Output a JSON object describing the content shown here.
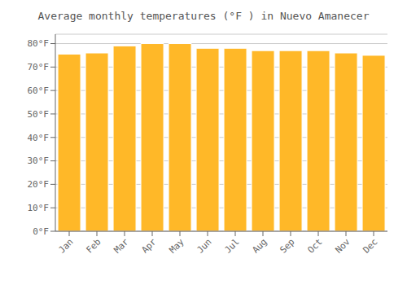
{
  "chart_data": {
    "type": "bar",
    "title": "Average monthly temperatures (°F ) in Nuevo Amanecer",
    "categories": [
      "Jan",
      "Feb",
      "Mar",
      "Apr",
      "May",
      "Jun",
      "Jul",
      "Aug",
      "Sep",
      "Oct",
      "Nov",
      "Dec"
    ],
    "values": [
      75.5,
      76.0,
      79.0,
      80.0,
      80.0,
      78.0,
      78.0,
      77.0,
      77.0,
      77.0,
      76.0,
      75.0
    ],
    "color": "#FFB828",
    "ylim": [
      0,
      84
    ],
    "yticks": [
      {
        "value": 0,
        "label": "0°F"
      },
      {
        "value": 10,
        "label": "10°F"
      },
      {
        "value": 20,
        "label": "20°F"
      },
      {
        "value": 30,
        "label": "30°F"
      },
      {
        "value": 40,
        "label": "40°F"
      },
      {
        "value": 50,
        "label": "50°F"
      },
      {
        "value": 60,
        "label": "60°F"
      },
      {
        "value": 70,
        "label": "70°F"
      },
      {
        "value": 80,
        "label": "80°F"
      }
    ],
    "grid": true
  }
}
